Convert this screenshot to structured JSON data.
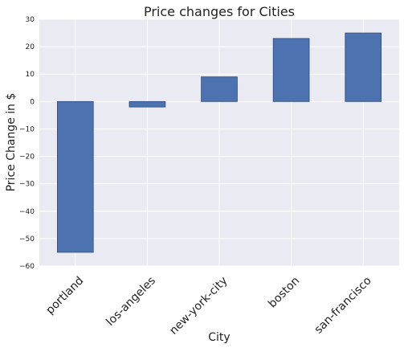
{
  "chart_data": {
    "type": "bar",
    "title": "Price changes for Cities",
    "xlabel": "City",
    "ylabel": "Price Change in $",
    "categories": [
      "portland",
      "los-angeles",
      "new-york-city",
      "boston",
      "san-francisco"
    ],
    "values": [
      -55,
      -2,
      9,
      23,
      25
    ],
    "ylim": [
      -60,
      30
    ],
    "yticks": [
      30,
      20,
      10,
      0,
      -10,
      -20,
      -30,
      -40,
      -50,
      -60
    ],
    "ytick_labels": [
      "30",
      "20",
      "10",
      "0",
      "−10",
      "−20",
      "−30",
      "−40",
      "−50",
      "−60"
    ],
    "grid": true,
    "colors": {
      "bar_fill": "#4c72b0",
      "bar_stroke": "#2f4a7a",
      "plot_background": "#eaeaf2",
      "grid": "#ffffff"
    }
  }
}
